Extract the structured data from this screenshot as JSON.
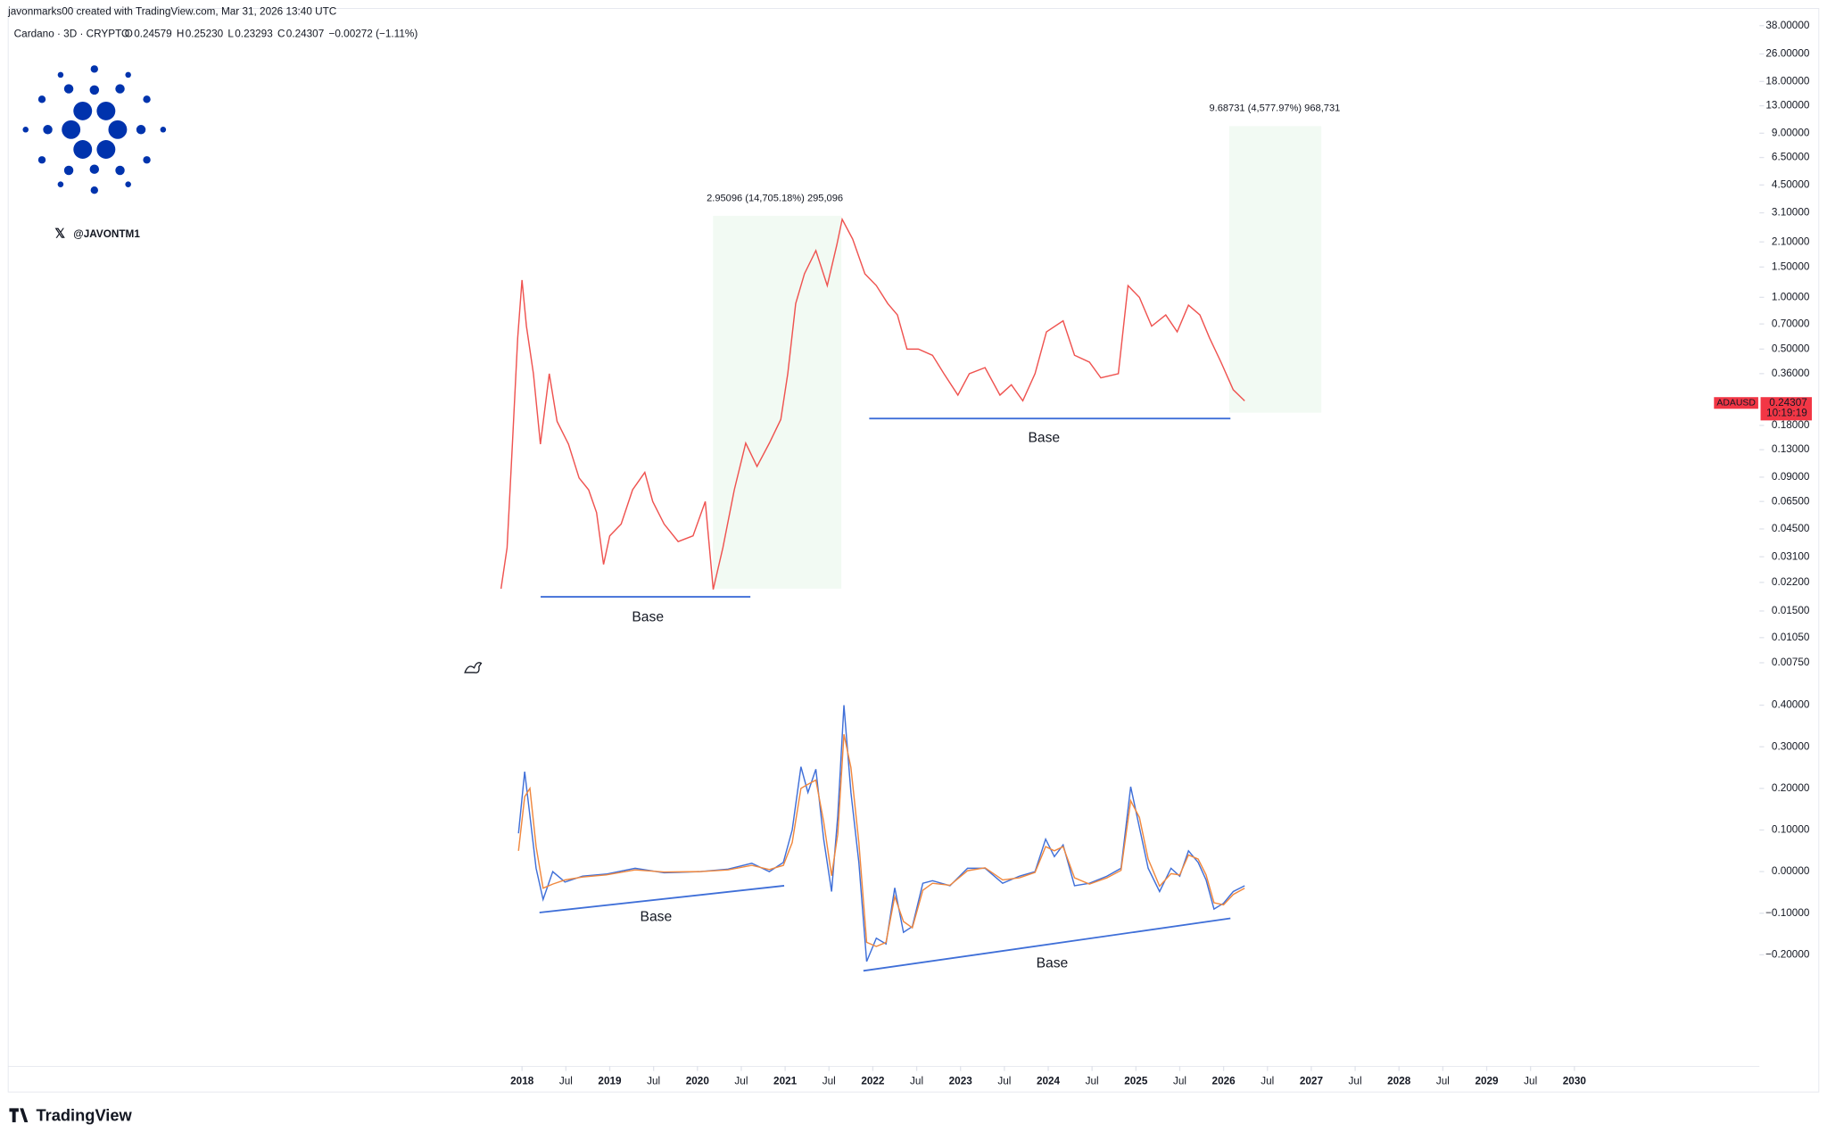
{
  "header": {
    "credit": "javonmarks00 created with TradingView.com, Mar 31, 2026 13:40 UTC",
    "symbol": "Cardano · 3D · CRYPTO",
    "ohlc": [
      {
        "key": "O",
        "value": "0.24579"
      },
      {
        "key": "H",
        "value": "0.25230"
      },
      {
        "key": "L",
        "value": "0.23293"
      },
      {
        "key": "C",
        "value": "0.24307"
      }
    ],
    "change": "−0.00272 (−1.11%)",
    "handle": "@JAVONTM1"
  },
  "footer": {
    "brand": "TradingView"
  },
  "chart_data": [
    {
      "type": "line",
      "log_scale": true,
      "xlim": [
        2012.14,
        2032.11
      ],
      "ylim": [
        0.00628,
        47.1
      ],
      "yticks": [
        {
          "value": 38,
          "label": "38.00000"
        },
        {
          "value": 26,
          "label": "26.00000"
        },
        {
          "value": 18,
          "label": "18.00000"
        },
        {
          "value": 13,
          "label": "13.00000"
        },
        {
          "value": 9,
          "label": "9.00000"
        },
        {
          "value": 6.5,
          "label": "6.50000"
        },
        {
          "value": 4.5,
          "label": "4.50000"
        },
        {
          "value": 3.1,
          "label": "3.10000"
        },
        {
          "value": 2.1,
          "label": "2.10000"
        },
        {
          "value": 1.5,
          "label": "1.50000"
        },
        {
          "value": 1,
          "label": "1.00000"
        },
        {
          "value": 0.7,
          "label": "0.70000"
        },
        {
          "value": 0.5,
          "label": "0.50000"
        },
        {
          "value": 0.36,
          "label": "0.36000"
        },
        {
          "value": 0.18,
          "label": "0.18000"
        },
        {
          "value": 0.13,
          "label": "0.13000"
        },
        {
          "value": 0.09,
          "label": "0.09000"
        },
        {
          "value": 0.065,
          "label": "0.06500"
        },
        {
          "value": 0.045,
          "label": "0.04500"
        },
        {
          "value": 0.031,
          "label": "0.03100"
        },
        {
          "value": 0.022,
          "label": "0.02200"
        },
        {
          "value": 0.015,
          "label": "0.01500"
        },
        {
          "value": 0.0105,
          "label": "0.01050"
        },
        {
          "value": 0.0075,
          "label": "0.00750"
        }
      ],
      "x": [
        2017.76,
        2017.83,
        2017.89,
        2017.95,
        2018.0,
        2018.05,
        2018.13,
        2018.21,
        2018.31,
        2018.4,
        2018.53,
        2018.65,
        2018.76,
        2018.85,
        2018.93,
        2019.0,
        2019.13,
        2019.26,
        2019.4,
        2019.49,
        2019.62,
        2019.78,
        2019.95,
        2020.09,
        2020.18,
        2020.29,
        2020.42,
        2020.55,
        2020.68,
        2020.82,
        2020.95,
        2021.03,
        2021.12,
        2021.22,
        2021.35,
        2021.48,
        2021.59,
        2021.65,
        2021.77,
        2021.91,
        2022.04,
        2022.17,
        2022.28,
        2022.39,
        2022.52,
        2022.68,
        2022.81,
        2022.97,
        2023.1,
        2023.28,
        2023.45,
        2023.58,
        2023.71,
        2023.85,
        2023.98,
        2024.17,
        2024.3,
        2024.47,
        2024.6,
        2024.8,
        2024.91,
        2025.04,
        2025.18,
        2025.34,
        2025.47,
        2025.6,
        2025.73,
        2025.84,
        2025.97,
        2026.11,
        2026.24
      ],
      "series": [
        {
          "name": "ADAUSD",
          "color": "#ef5350",
          "values": [
            0.0202,
            0.035,
            0.142,
            0.58,
            1.26,
            0.68,
            0.36,
            0.14,
            0.36,
            0.19,
            0.14,
            0.089,
            0.076,
            0.056,
            0.028,
            0.041,
            0.048,
            0.076,
            0.096,
            0.065,
            0.048,
            0.038,
            0.041,
            0.065,
            0.02,
            0.035,
            0.076,
            0.142,
            0.104,
            0.142,
            0.195,
            0.36,
            0.92,
            1.37,
            1.87,
            1.17,
            2.02,
            2.84,
            2.18,
            1.37,
            1.17,
            0.92,
            0.79,
            0.5,
            0.5,
            0.46,
            0.36,
            0.27,
            0.36,
            0.39,
            0.27,
            0.31,
            0.25,
            0.36,
            0.63,
            0.73,
            0.46,
            0.42,
            0.34,
            0.36,
            1.17,
            1.0,
            0.68,
            0.79,
            0.63,
            0.9,
            0.79,
            0.58,
            0.42,
            0.29,
            0.25
          ]
        }
      ],
      "price_tag": {
        "value": 0.24307,
        "countdown": "10:19:19",
        "color": "#f23645"
      },
      "annotations": [
        "2.95096 (14,705.18%) 295,096",
        "9.68731 (4,577.97%) 968,731",
        "Base",
        "Base"
      ]
    },
    {
      "type": "line",
      "xlim": [
        2012.14,
        2032.11
      ],
      "ylim": [
        -0.468,
        0.442
      ],
      "yticks": [
        {
          "value": 0.4,
          "label": "0.40000"
        },
        {
          "value": 0.3,
          "label": "0.30000"
        },
        {
          "value": 0.2,
          "label": "0.20000"
        },
        {
          "value": 0.1,
          "label": "0.10000"
        },
        {
          "value": 0,
          "label": "0.00000"
        },
        {
          "value": -0.1,
          "label": "−0.10000"
        },
        {
          "value": -0.2,
          "label": "−0.20000"
        }
      ],
      "xticks": [
        2018,
        {
          "value": 2018.5,
          "label": "Jul"
        },
        2019,
        {
          "value": 2019.5,
          "label": "Jul"
        },
        2020,
        {
          "value": 2020.5,
          "label": "Jul"
        },
        2021,
        {
          "value": 2021.5,
          "label": "Jul"
        },
        2022,
        {
          "value": 2022.5,
          "label": "Jul"
        },
        2023,
        {
          "value": 2023.5,
          "label": "Jul"
        },
        2024,
        {
          "value": 2024.5,
          "label": "Jul"
        },
        2025,
        {
          "value": 2025.5,
          "label": "Jul"
        },
        2026,
        {
          "value": 2026.5,
          "label": "Jul"
        },
        2027,
        {
          "value": 2027.5,
          "label": "Jul"
        },
        2028,
        {
          "value": 2028.5,
          "label": "Jul"
        },
        2029,
        {
          "value": 2029.5,
          "label": "Jul"
        },
        2030
      ],
      "x": [
        2017.96,
        2018.03,
        2018.09,
        2018.16,
        2018.24,
        2018.35,
        2018.49,
        2018.69,
        2018.96,
        2019.29,
        2019.62,
        2020.02,
        2020.35,
        2020.62,
        2020.82,
        2020.98,
        2021.08,
        2021.18,
        2021.26,
        2021.35,
        2021.44,
        2021.53,
        2021.6,
        2021.67,
        2021.75,
        2021.84,
        2021.93,
        2022.04,
        2022.15,
        2022.25,
        2022.35,
        2022.45,
        2022.57,
        2022.68,
        2022.88,
        2023.08,
        2023.28,
        2023.48,
        2023.67,
        2023.85,
        2023.97,
        2024.07,
        2024.17,
        2024.3,
        2024.47,
        2024.67,
        2024.83,
        2024.94,
        2025.04,
        2025.14,
        2025.27,
        2025.4,
        2025.5,
        2025.6,
        2025.71,
        2025.8,
        2025.89,
        2026.0,
        2026.11,
        2026.24
      ],
      "series": [
        {
          "color": "#3f6fd8",
          "values": [
            0.092,
            0.24,
            0.134,
            0.008,
            -0.067,
            0,
            -0.025,
            -0.011,
            -0.006,
            0.008,
            -0.003,
            0,
            0.006,
            0.02,
            0,
            0.022,
            0.1,
            0.252,
            0.19,
            0.246,
            0.078,
            -0.048,
            0.134,
            0.4,
            0.19,
            0.022,
            -0.216,
            -0.16,
            -0.174,
            -0.039,
            -0.146,
            -0.132,
            -0.028,
            -0.022,
            -0.034,
            0.008,
            0.008,
            -0.028,
            -0.011,
            0,
            0.078,
            0.036,
            0.064,
            -0.034,
            -0.028,
            -0.011,
            0.008,
            0.204,
            0.106,
            0.008,
            -0.048,
            0.008,
            -0.011,
            0.05,
            0.022,
            -0.02,
            -0.09,
            -0.076,
            -0.048,
            -0.034
          ]
        },
        {
          "color": "#f0883e",
          "values": [
            0.05,
            0.18,
            0.2,
            0.06,
            -0.04,
            -0.03,
            -0.02,
            -0.013,
            -0.008,
            0.004,
            -0.001,
            0,
            0.004,
            0.015,
            0.005,
            0.015,
            0.07,
            0.2,
            0.21,
            0.22,
            0.12,
            -0.01,
            0.09,
            0.33,
            0.25,
            0.07,
            -0.17,
            -0.18,
            -0.17,
            -0.06,
            -0.12,
            -0.135,
            -0.045,
            -0.028,
            -0.033,
            0.002,
            0.009,
            -0.02,
            -0.015,
            -0.002,
            0.06,
            0.05,
            0.06,
            -0.015,
            -0.03,
            -0.015,
            0.003,
            0.17,
            0.13,
            0.03,
            -0.035,
            -0.005,
            -0.008,
            0.04,
            0.03,
            -0.008,
            -0.075,
            -0.08,
            -0.055,
            -0.04
          ]
        }
      ],
      "annotations": [
        "Base",
        "Base"
      ]
    }
  ]
}
